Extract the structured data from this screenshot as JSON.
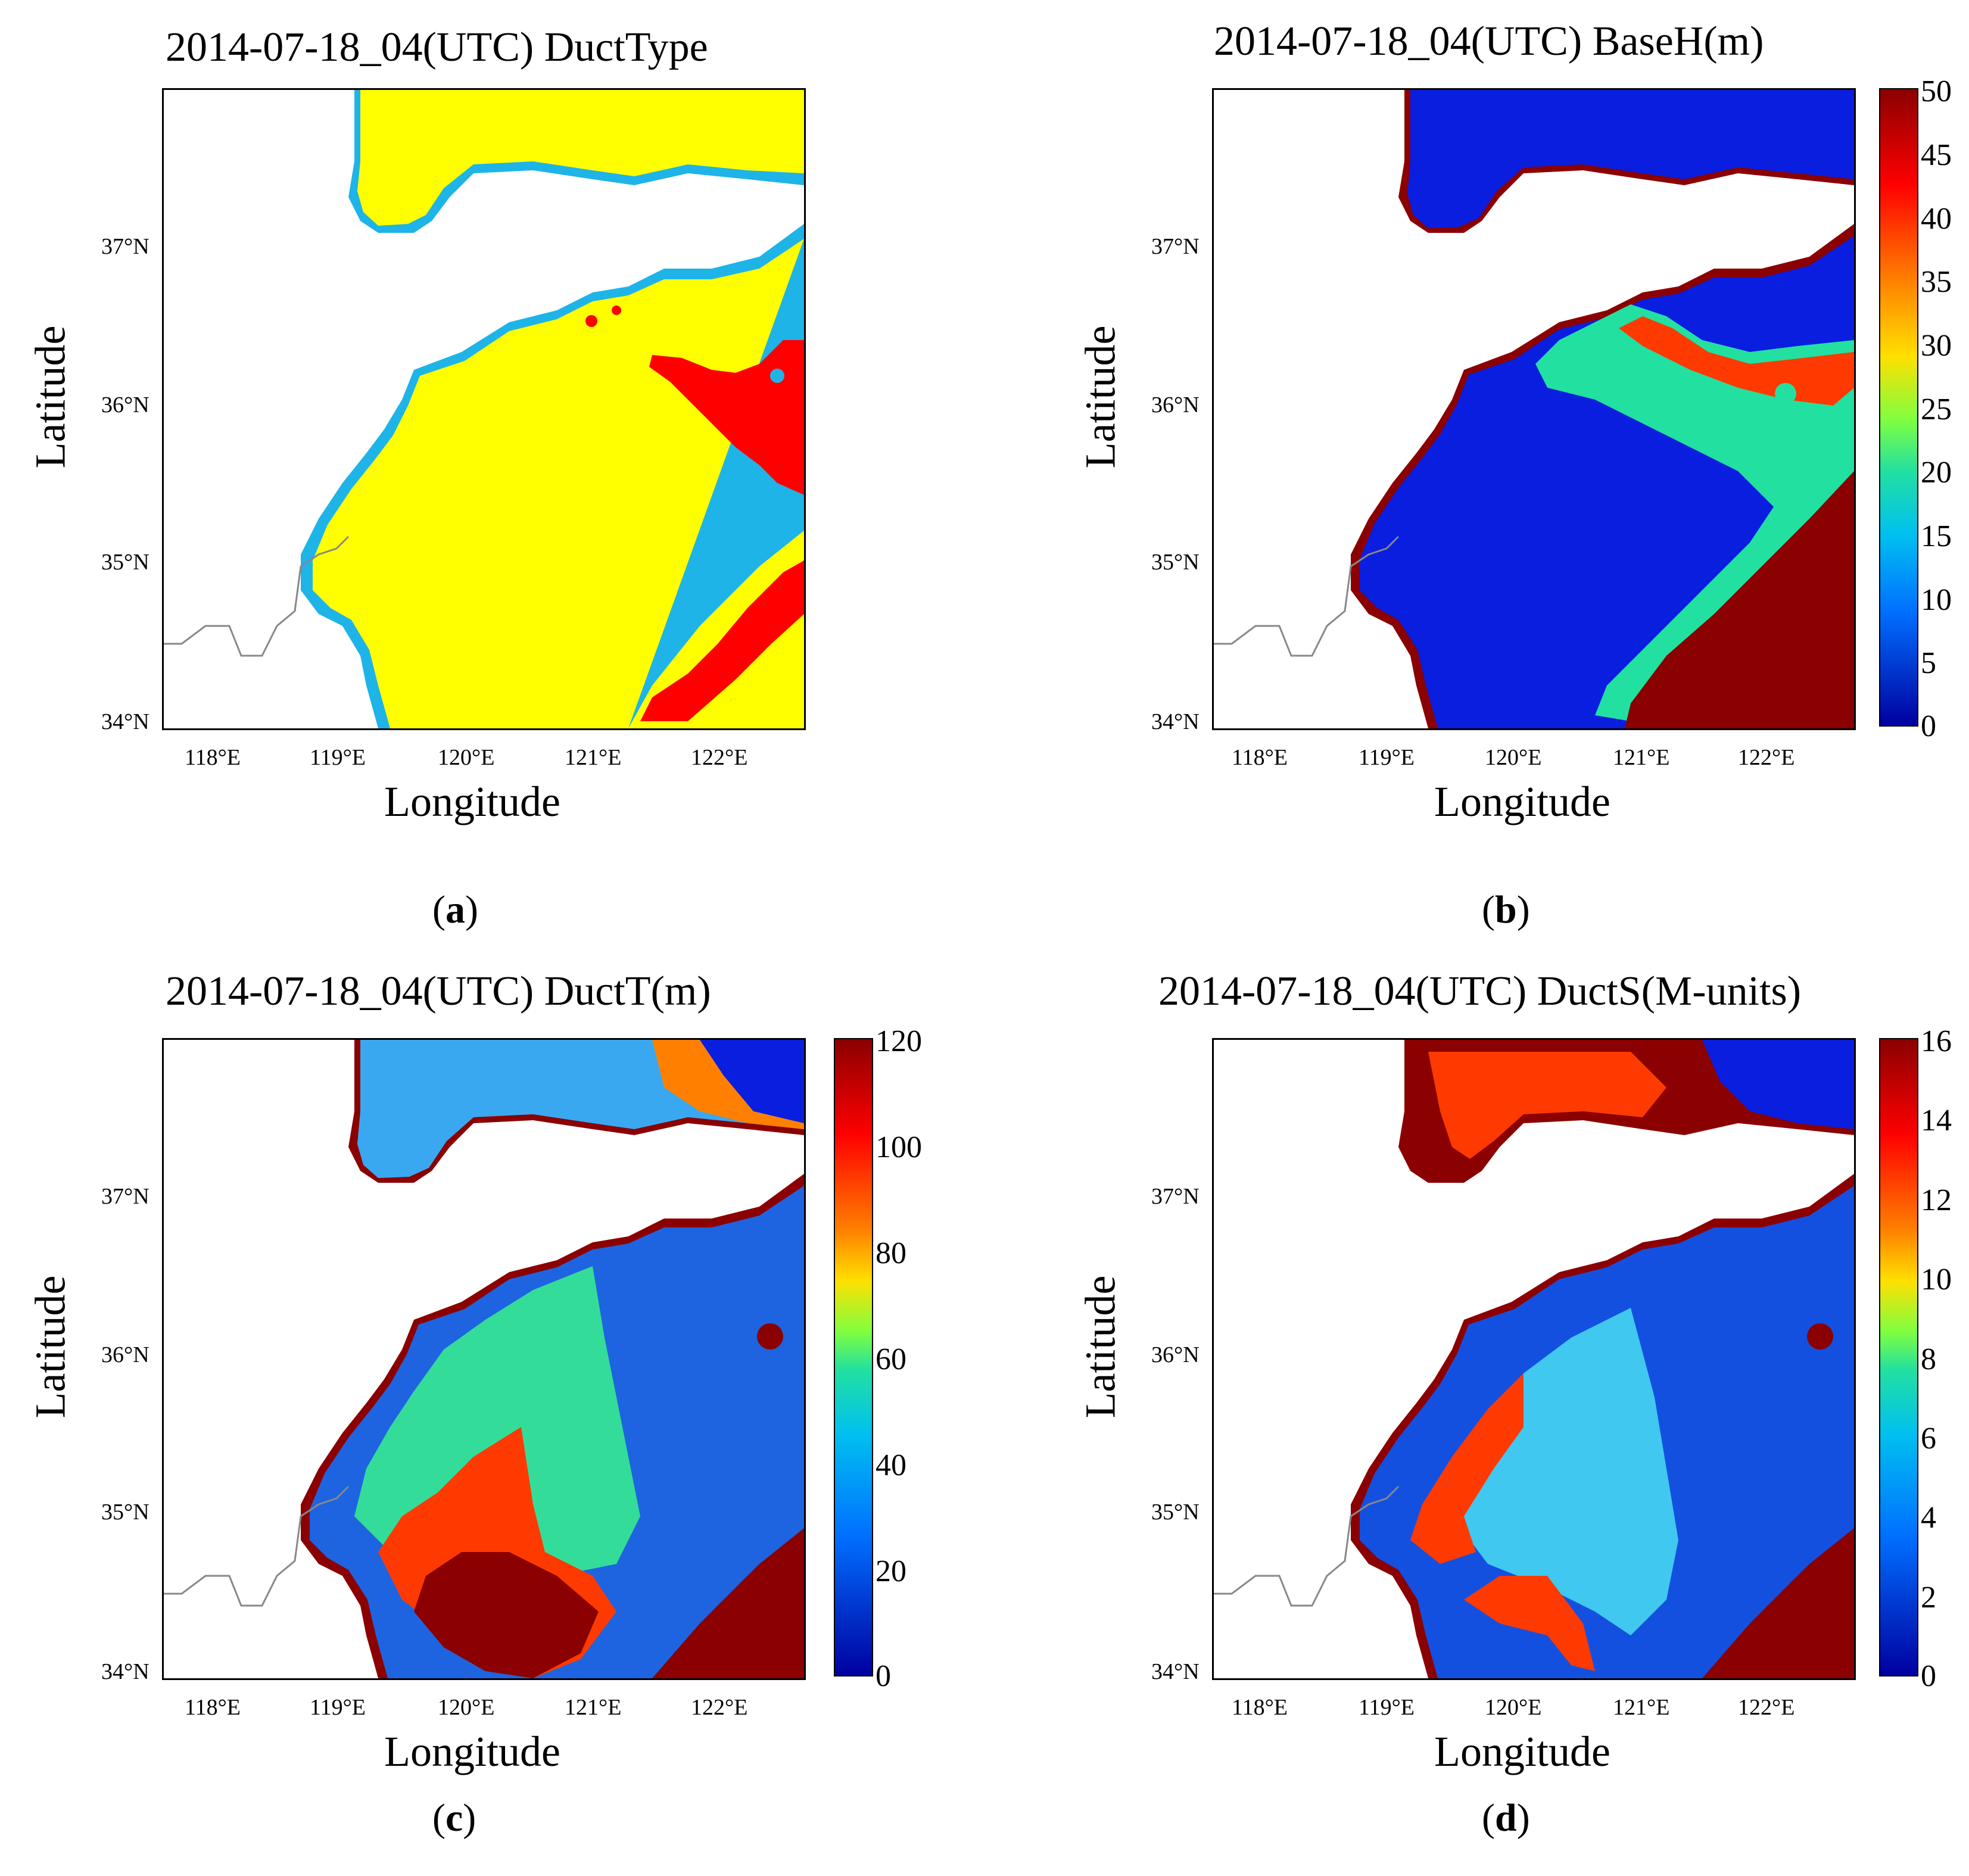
{
  "figure": {
    "panels": [
      {
        "id": "a",
        "title": "2014-07-18_04(UTC) DuctType",
        "label": "a",
        "xlabel": "Longitude",
        "ylabel": "Latitude",
        "xticks": [
          "118°E",
          "119°E",
          "120°E",
          "121°E",
          "122°E"
        ],
        "yticks": [
          "37°N",
          "36°N",
          "35°N",
          "34°N"
        ],
        "colorbar": null,
        "colors": {
          "sea": "#ffff00",
          "edge": "#1eb4e8",
          "hot": "#ff0000"
        }
      },
      {
        "id": "b",
        "title": "2014-07-18_04(UTC) BaseH(m)",
        "label": "b",
        "xlabel": "Longitude",
        "ylabel": "Latitude",
        "xticks": [
          "118°E",
          "119°E",
          "120°E",
          "121°E",
          "122°E"
        ],
        "yticks": [
          "37°N",
          "36°N",
          "35°N",
          "34°N"
        ],
        "colorbar": {
          "min": 0,
          "max": 50,
          "ticks": [
            "50",
            "45",
            "40",
            "35",
            "30",
            "25",
            "20",
            "15",
            "10",
            "5",
            "0"
          ]
        },
        "colors": {
          "base": "#0a1ee0",
          "mid": "#22e0a0",
          "high": "#8b0000"
        }
      },
      {
        "id": "c",
        "title": "2014-07-18_04(UTC) DuctT(m)",
        "label": "c",
        "xlabel": "Longitude",
        "ylabel": "Latitude",
        "xticks": [
          "118°E",
          "119°E",
          "120°E",
          "121°E",
          "122°E"
        ],
        "yticks": [
          "37°N",
          "36°N",
          "35°N",
          "34°N"
        ],
        "colorbar": {
          "min": 0,
          "max": 120,
          "ticks": [
            "120",
            "100",
            "80",
            "60",
            "40",
            "20",
            "0"
          ]
        },
        "colors": {
          "base": "#1e64e0",
          "mid": "#33dd99",
          "high": "#8b0000"
        }
      },
      {
        "id": "d",
        "title": "2014-07-18_04(UTC) DuctS(M-units)",
        "label": "d",
        "xlabel": "Longitude",
        "ylabel": "Latitude",
        "xticks": [
          "118°E",
          "119°E",
          "120°E",
          "121°E",
          "122°E"
        ],
        "yticks": [
          "37°N",
          "36°N",
          "35°N",
          "34°N"
        ],
        "colorbar": {
          "min": 0,
          "max": 16,
          "ticks": [
            "16",
            "14",
            "12",
            "10",
            "8",
            "6",
            "4",
            "2",
            "0"
          ]
        },
        "colors": {
          "base": "#1450e0",
          "mid": "#40c8f0",
          "high": "#8b0000"
        }
      }
    ]
  }
}
